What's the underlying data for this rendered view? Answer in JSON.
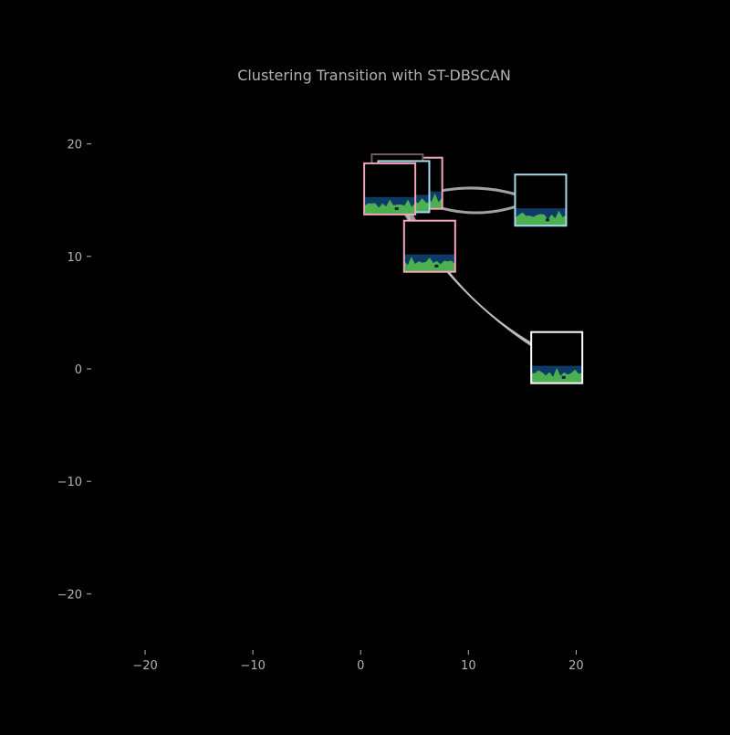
{
  "chart_data": {
    "type": "scatter",
    "title": "Clustering Transition with ST-DBSCAN",
    "xlabel": "",
    "ylabel": "",
    "xlim": [
      -25,
      27.5
    ],
    "ylim": [
      -25,
      25
    ],
    "xticks": [
      -20,
      -10,
      0,
      10,
      20
    ],
    "yticks": [
      -20,
      -10,
      0,
      10,
      20
    ],
    "xtick_labels": [
      "−20",
      "−10",
      "0",
      "10",
      "20"
    ],
    "ytick_labels": [
      "−20",
      "−10",
      "0",
      "10",
      "20"
    ],
    "grid": false,
    "legend": "none",
    "nodes": [
      {
        "id": "n1",
        "x": 5.2,
        "y": 16.5,
        "border": "#f4a6b5"
      },
      {
        "id": "n2",
        "x": 3.4,
        "y": 16.8,
        "border": "#6f5a61"
      },
      {
        "id": "n3",
        "x": 4.0,
        "y": 16.2,
        "border": "#a8d8f0"
      },
      {
        "id": "n4",
        "x": 2.7,
        "y": 16.0,
        "border": "#f4a6b5"
      },
      {
        "id": "n5",
        "x": 6.4,
        "y": 10.9,
        "border": "#f4a6b5"
      },
      {
        "id": "n6",
        "x": 16.7,
        "y": 15.0,
        "border": "#a8d8f0"
      },
      {
        "id": "n7",
        "x": 18.2,
        "y": 1.0,
        "border": "#ffffff"
      }
    ],
    "edges": [
      {
        "from": [
          5.0,
          15.2
        ],
        "to": [
          16.0,
          15.0
        ],
        "bend": 2.5,
        "count": 1
      },
      {
        "from": [
          5.0,
          15.2
        ],
        "to": [
          16.0,
          15.0
        ],
        "bend": -2.0,
        "count": 1
      },
      {
        "from": [
          3.5,
          15.5
        ],
        "to": [
          17.0,
          1.5
        ],
        "bend": 3.0,
        "count": 8
      },
      {
        "from": [
          4.0,
          15.0
        ],
        "to": [
          7.0,
          10.0
        ],
        "bend": 1.0,
        "count": 4
      }
    ]
  },
  "colors": {
    "background": "#000000",
    "text": "#b3b3b3",
    "edge": "#bdbdbd",
    "thumb_water": "#0e3a66",
    "thumb_land": "#4caf50",
    "thumb_dark": "#0a2040"
  }
}
